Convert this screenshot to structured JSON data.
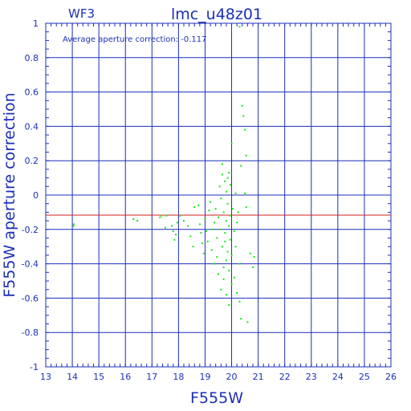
{
  "chart_data": {
    "type": "scatter",
    "title": "lmc_u48z01",
    "subtitle": "WF3",
    "annotation": "Average aperture correction: -0.117",
    "xlabel": "F555W",
    "ylabel": "F555W aperture correction",
    "xlim": [
      13,
      26
    ],
    "ylim": [
      -1,
      1
    ],
    "x_ticks": [
      "13",
      "14",
      "15",
      "16",
      "17",
      "18",
      "19",
      "20",
      "21",
      "22",
      "23",
      "24",
      "25",
      "26"
    ],
    "y_ticks": [
      "1",
      "0.8",
      "0.6",
      "0.4",
      "0.2",
      "0",
      "-0.2",
      "-0.4",
      "-0.6",
      "-0.8",
      "-1"
    ],
    "grid": true,
    "reference_line": {
      "y": -0.117,
      "color": "#d21f1f"
    },
    "colors": {
      "axis": "#1c2fb8",
      "grid": "#1c2fb8",
      "points": "#19e619"
    },
    "points": [
      [
        14.05,
        -0.18
      ],
      [
        14.05,
        -0.17
      ],
      [
        16.3,
        -0.14
      ],
      [
        16.45,
        -0.15
      ],
      [
        17.3,
        -0.13
      ],
      [
        17.35,
        -0.12
      ],
      [
        17.55,
        -0.12
      ],
      [
        17.5,
        -0.19
      ],
      [
        17.75,
        -0.18
      ],
      [
        17.8,
        -0.21
      ],
      [
        17.85,
        -0.26
      ],
      [
        17.9,
        -0.23
      ],
      [
        17.95,
        -0.16
      ],
      [
        18.05,
        -0.12
      ],
      [
        18.2,
        -0.15
      ],
      [
        18.35,
        -0.18
      ],
      [
        18.45,
        -0.24
      ],
      [
        18.55,
        -0.3
      ],
      [
        18.6,
        -0.07
      ],
      [
        18.75,
        -0.06
      ],
      [
        18.8,
        -0.17
      ],
      [
        18.85,
        -0.22
      ],
      [
        18.9,
        -0.28
      ],
      [
        18.95,
        -0.34
      ],
      [
        19.0,
        -0.14
      ],
      [
        19.05,
        -0.21
      ],
      [
        19.1,
        -0.27
      ],
      [
        19.15,
        -0.09
      ],
      [
        19.2,
        -0.04
      ],
      [
        19.25,
        -0.32
      ],
      [
        19.3,
        -0.2
      ],
      [
        19.35,
        -0.16
      ],
      [
        19.35,
        -0.4
      ],
      [
        19.4,
        -0.08
      ],
      [
        19.45,
        -0.25
      ],
      [
        19.45,
        -0.36
      ],
      [
        19.5,
        -0.13
      ],
      [
        19.5,
        -0.46
      ],
      [
        19.55,
        0.05
      ],
      [
        19.6,
        -0.02
      ],
      [
        19.6,
        -0.2
      ],
      [
        19.6,
        -0.55
      ],
      [
        19.65,
        0.12
      ],
      [
        19.65,
        -0.3
      ],
      [
        19.7,
        -0.1
      ],
      [
        19.7,
        -0.42
      ],
      [
        19.7,
        -0.49
      ],
      [
        19.75,
        0.08
      ],
      [
        19.75,
        -0.22
      ],
      [
        19.75,
        -0.27
      ],
      [
        19.8,
        0.02
      ],
      [
        19.8,
        -0.15
      ],
      [
        19.8,
        -0.38
      ],
      [
        19.8,
        -0.58
      ],
      [
        19.85,
        0.1
      ],
      [
        19.85,
        -0.05
      ],
      [
        19.85,
        -0.33
      ],
      [
        19.9,
        -0.18
      ],
      [
        19.9,
        -0.44
      ],
      [
        19.9,
        -0.64
      ],
      [
        19.95,
        0.06
      ],
      [
        19.95,
        -0.12
      ],
      [
        19.95,
        -0.26
      ],
      [
        20.0,
        -0.35
      ],
      [
        20.0,
        -0.52
      ],
      [
        20.0,
        0.3
      ],
      [
        20.05,
        -0.08
      ],
      [
        20.1,
        -0.21
      ],
      [
        20.1,
        -0.48
      ],
      [
        20.15,
        0.01
      ],
      [
        20.15,
        -0.3
      ],
      [
        20.2,
        -0.16
      ],
      [
        20.2,
        -0.57
      ],
      [
        20.25,
        -0.1
      ],
      [
        20.3,
        -0.4
      ],
      [
        20.3,
        -0.62
      ],
      [
        20.35,
        0.17
      ],
      [
        20.35,
        -0.72
      ],
      [
        20.4,
        0.52
      ],
      [
        20.45,
        0.46
      ],
      [
        20.5,
        0.38
      ],
      [
        20.5,
        0.01
      ],
      [
        20.55,
        0.23
      ],
      [
        20.55,
        -0.07
      ],
      [
        20.6,
        -0.74
      ],
      [
        20.7,
        -0.34
      ],
      [
        20.8,
        -0.42
      ],
      [
        20.85,
        -0.36
      ],
      [
        20.3,
        0.98
      ],
      [
        19.65,
        0.18
      ],
      [
        19.9,
        0.13
      ]
    ]
  }
}
